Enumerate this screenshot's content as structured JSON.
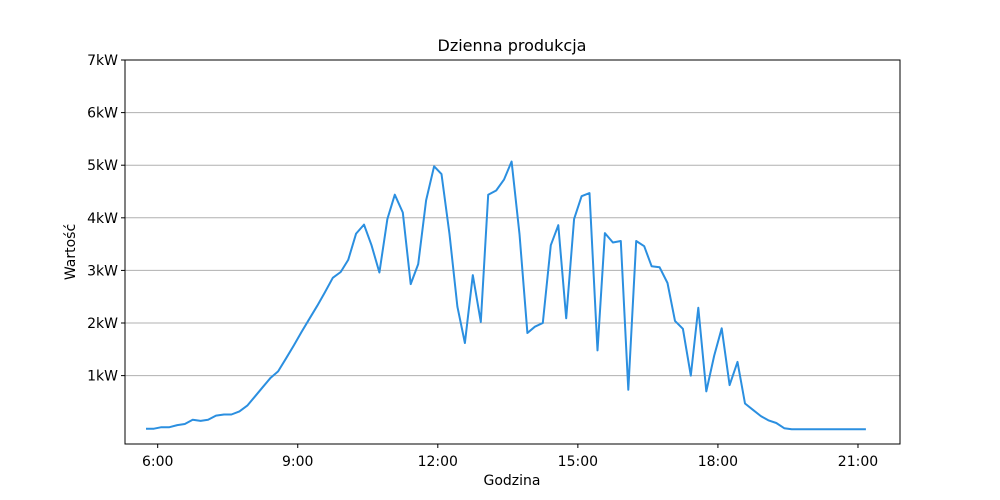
{
  "chart_data": {
    "type": "line",
    "title": "Dzienna produkcja",
    "xlabel": "Godzina",
    "ylabel": "Wartość",
    "x_unit": "hour of day",
    "xlim": [
      5.3,
      21.9
    ],
    "ylim": [
      -0.3,
      7
    ],
    "y_ticks": [
      1,
      2,
      3,
      4,
      5,
      6,
      7
    ],
    "y_tick_labels": [
      "1kW",
      "2kW",
      "3kW",
      "4kW",
      "5kW",
      "6kW",
      "7kW"
    ],
    "x_ticks": [
      6,
      9,
      12,
      15,
      18,
      21
    ],
    "x_tick_labels": [
      "6:00",
      "9:00",
      "12:00",
      "15:00",
      "18:00",
      "21:00"
    ],
    "grid": "horizontal",
    "color": "#2b8fe0",
    "series": [
      {
        "x": [
          5.75,
          5.92,
          6.08,
          6.25,
          6.42,
          6.58,
          6.75,
          6.92,
          7.08,
          7.25,
          7.42,
          7.58,
          7.75,
          7.92,
          8.08,
          8.25,
          8.42,
          8.58,
          8.75,
          8.92,
          9.08,
          9.25,
          9.42,
          9.58,
          9.75,
          9.92,
          10.08,
          10.25,
          10.42,
          10.58,
          10.75,
          10.92,
          11.08,
          11.25,
          11.42,
          11.58,
          11.75,
          11.92,
          12.08,
          12.25,
          12.42,
          12.58,
          12.75,
          12.92,
          13.08,
          13.25,
          13.42,
          13.58,
          13.75,
          13.92,
          14.08,
          14.25,
          14.42,
          14.58,
          14.75,
          14.92,
          15.08,
          15.25,
          15.42,
          15.58,
          15.75,
          15.92,
          16.08,
          16.25,
          16.42,
          16.58,
          16.75,
          16.92,
          17.08,
          17.25,
          17.42,
          17.58,
          17.75,
          17.92,
          18.08,
          18.25,
          18.42,
          18.58,
          18.75,
          18.92,
          19.08,
          19.25,
          19.42,
          19.58,
          19.75,
          19.92,
          20.08,
          20.25,
          20.42,
          20.58,
          20.75,
          20.92,
          21.08,
          21.17
        ],
        "values": [
          -0.01,
          -0.01,
          0.02,
          0.02,
          0.06,
          0.08,
          0.16,
          0.14,
          0.16,
          0.24,
          0.26,
          0.26,
          0.32,
          0.43,
          0.6,
          0.78,
          0.96,
          1.08,
          1.33,
          1.58,
          1.83,
          2.08,
          2.33,
          2.58,
          2.86,
          2.97,
          3.2,
          3.7,
          3.87,
          3.48,
          2.96,
          3.98,
          4.44,
          4.1,
          2.74,
          3.12,
          4.33,
          4.98,
          4.83,
          3.69,
          2.31,
          1.62,
          2.91,
          2.02,
          4.44,
          4.52,
          4.73,
          5.07,
          3.69,
          1.81,
          1.93,
          2.0,
          3.48,
          3.86,
          2.09,
          3.98,
          4.41,
          4.47,
          1.48,
          3.71,
          3.53,
          3.56,
          0.73,
          3.56,
          3.46,
          3.08,
          3.06,
          2.76,
          2.04,
          1.89,
          1.0,
          2.29,
          0.7,
          1.38,
          1.9,
          0.82,
          1.26,
          0.47,
          0.35,
          0.23,
          0.15,
          0.1,
          0.0,
          -0.02,
          -0.02,
          -0.02,
          -0.02,
          -0.02,
          -0.02,
          -0.02,
          -0.02,
          -0.02,
          -0.02,
          -0.02
        ]
      }
    ]
  }
}
